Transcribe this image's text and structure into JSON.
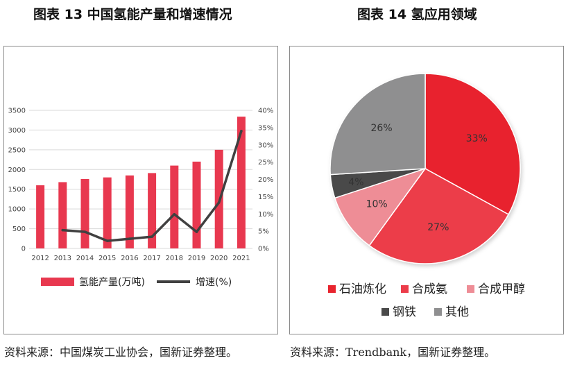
{
  "titles": {
    "left": "图表 13  中国氢能产量和增速情况",
    "right": "图表 14  氢应用领域"
  },
  "sources": {
    "left": "资料来源：中国煤炭工业协会，国新证券整理。",
    "right": "资料来源：Trendbank，国新证券整理。"
  },
  "chart_data": [
    {
      "type": "bar",
      "title": "图表 13  中国氢能产量和增速情况",
      "categories": [
        "2012",
        "2013",
        "2014",
        "2015",
        "2016",
        "2017",
        "2018",
        "2019",
        "2020",
        "2021"
      ],
      "series": [
        {
          "name": "氢能产量(万吨)",
          "type": "bar",
          "axis": "left",
          "color": "#e8384f",
          "values": [
            1600,
            1680,
            1760,
            1800,
            1850,
            1910,
            2100,
            2200,
            2500,
            3340
          ]
        },
        {
          "name": "增速(%)",
          "type": "line",
          "axis": "right",
          "color": "#404040",
          "values": [
            null,
            5.3,
            4.8,
            2.2,
            2.8,
            3.4,
            9.9,
            4.8,
            13.3,
            34.0
          ]
        }
      ],
      "y_left": {
        "ticks": [
          "0",
          "500",
          "1000",
          "1500",
          "2000",
          "2500",
          "3000",
          "3500"
        ],
        "ylim": [
          0,
          3500
        ]
      },
      "y_right": {
        "ticks": [
          "0%",
          "5%",
          "10%",
          "15%",
          "20%",
          "25%",
          "30%",
          "35%",
          "40%"
        ],
        "ylim": [
          0,
          40
        ]
      },
      "grid": true,
      "legend": "bottom"
    },
    {
      "type": "pie",
      "title": "图表 14  氢应用领域",
      "slices": [
        {
          "name": "石油炼化",
          "value": 33,
          "label": "33%",
          "color": "#e8242e"
        },
        {
          "name": "合成氨",
          "value": 27,
          "label": "27%",
          "color": "#ec3c4a"
        },
        {
          "name": "合成甲醇",
          "value": 10,
          "label": "10%",
          "color": "#ee8d96"
        },
        {
          "name": "钢铁",
          "value": 4,
          "label": "4%",
          "color": "#4a4a4a"
        },
        {
          "name": "其他",
          "value": 26,
          "label": "26%",
          "color": "#8f8f90"
        }
      ],
      "legend": "bottom"
    }
  ]
}
